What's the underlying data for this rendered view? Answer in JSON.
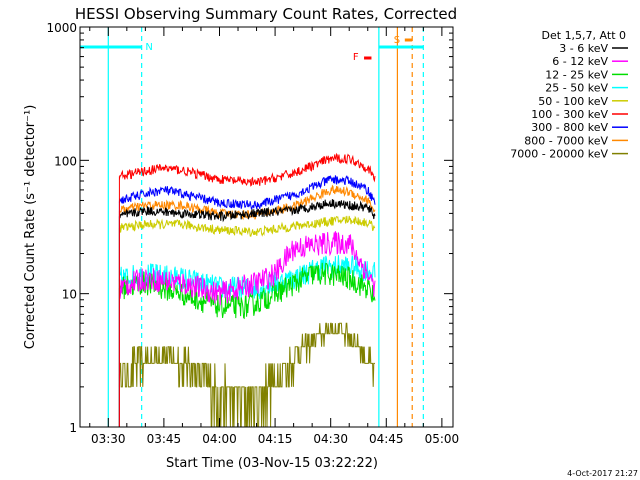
{
  "chart_data": {
    "type": "line",
    "title": "HESSI Observing Summary Count Rates, Corrected",
    "xlabel": "Start Time (03-Nov-15 03:22:22)",
    "ylabel": "Corrected Count Rate (s⁻¹ detector⁻¹)",
    "yscale": "log",
    "ylim": [
      1,
      1000
    ],
    "xlim": [
      "03:22:22",
      "05:03:00"
    ],
    "x_ticks": [
      "03:30",
      "03:45",
      "04:00",
      "04:15",
      "04:30",
      "04:45",
      "05:00"
    ],
    "y_ticks": [
      "1",
      "10",
      "100",
      "1000"
    ],
    "legend_title": "Det 1,5,7, Att 0",
    "legend_position": "right",
    "timestamp": "4-Oct-2017 21:27",
    "series": [
      {
        "name": "3 - 6 keV",
        "color": "#000000",
        "points": [
          [
            "03:33",
            38
          ],
          [
            "03:40",
            42
          ],
          [
            "03:50",
            40
          ],
          [
            "04:00",
            38
          ],
          [
            "04:10",
            40
          ],
          [
            "04:20",
            42
          ],
          [
            "04:30",
            48
          ],
          [
            "04:35",
            46
          ],
          [
            "04:40",
            44
          ],
          [
            "04:42",
            38
          ]
        ]
      },
      {
        "name": "6 - 12 keV",
        "color": "#ff00ff",
        "points": [
          [
            "03:33",
            11
          ],
          [
            "03:40",
            13
          ],
          [
            "03:50",
            12
          ],
          [
            "04:00",
            10
          ],
          [
            "04:10",
            12
          ],
          [
            "04:15",
            14
          ],
          [
            "04:20",
            22
          ],
          [
            "04:30",
            24
          ],
          [
            "04:35",
            24
          ],
          [
            "04:40",
            14
          ],
          [
            "04:42",
            11
          ]
        ]
      },
      {
        "name": "12 - 25 keV",
        "color": "#00dd00",
        "points": [
          [
            "03:33",
            11
          ],
          [
            "03:40",
            12
          ],
          [
            "03:50",
            10
          ],
          [
            "04:00",
            8
          ],
          [
            "04:08",
            8
          ],
          [
            "04:15",
            10
          ],
          [
            "04:25",
            14
          ],
          [
            "04:30",
            14
          ],
          [
            "04:35",
            13
          ],
          [
            "04:40",
            11
          ],
          [
            "04:42",
            9
          ]
        ]
      },
      {
        "name": "25 - 50 keV",
        "color": "#00ffff",
        "points": [
          [
            "03:33",
            13
          ],
          [
            "03:40",
            14
          ],
          [
            "03:50",
            13
          ],
          [
            "04:00",
            11
          ],
          [
            "04:10",
            11
          ],
          [
            "04:20",
            13
          ],
          [
            "04:28",
            16
          ],
          [
            "04:35",
            16
          ],
          [
            "04:40",
            15
          ],
          [
            "04:42",
            14
          ]
        ]
      },
      {
        "name": "50 - 100 keV",
        "color": "#cccc00",
        "points": [
          [
            "03:33",
            31
          ],
          [
            "03:40",
            33
          ],
          [
            "03:50",
            33
          ],
          [
            "04:00",
            30
          ],
          [
            "04:10",
            29
          ],
          [
            "04:20",
            32
          ],
          [
            "04:30",
            35
          ],
          [
            "04:35",
            36
          ],
          [
            "04:40",
            34
          ],
          [
            "04:42",
            31
          ]
        ]
      },
      {
        "name": "100 - 300 keV",
        "color": "#ff0000",
        "points": [
          [
            "03:33",
            76
          ],
          [
            "03:40",
            83
          ],
          [
            "03:45",
            88
          ],
          [
            "03:50",
            84
          ],
          [
            "04:00",
            72
          ],
          [
            "04:10",
            68
          ],
          [
            "04:20",
            80
          ],
          [
            "04:30",
            103
          ],
          [
            "04:35",
            103
          ],
          [
            "04:40",
            88
          ],
          [
            "04:42",
            72
          ]
        ]
      },
      {
        "name": "300 - 800 keV",
        "color": "#0000ff",
        "points": [
          [
            "03:33",
            50
          ],
          [
            "03:40",
            56
          ],
          [
            "03:45",
            60
          ],
          [
            "03:50",
            56
          ],
          [
            "04:00",
            48
          ],
          [
            "04:10",
            46
          ],
          [
            "04:20",
            55
          ],
          [
            "04:30",
            72
          ],
          [
            "04:35",
            70
          ],
          [
            "04:40",
            60
          ],
          [
            "04:42",
            48
          ]
        ]
      },
      {
        "name": "800 - 7000 keV",
        "color": "#ff8800",
        "points": [
          [
            "03:33",
            42
          ],
          [
            "03:40",
            46
          ],
          [
            "03:50",
            46
          ],
          [
            "04:00",
            40
          ],
          [
            "04:10",
            39
          ],
          [
            "04:20",
            45
          ],
          [
            "04:30",
            60
          ],
          [
            "04:35",
            58
          ],
          [
            "04:40",
            50
          ],
          [
            "04:42",
            41
          ]
        ]
      },
      {
        "name": "7000 - 20000 keV",
        "color": "#808000",
        "points": [
          [
            "03:33",
            2.5
          ],
          [
            "03:40",
            3.2
          ],
          [
            "03:45",
            3.5
          ],
          [
            "03:52",
            3
          ],
          [
            "04:00",
            1.8
          ],
          [
            "04:08",
            1.6
          ],
          [
            "04:15",
            2.2
          ],
          [
            "04:22",
            3.8
          ],
          [
            "04:30",
            5.5
          ],
          [
            "04:35",
            5
          ],
          [
            "04:40",
            3.3
          ],
          [
            "04:42",
            2.6
          ]
        ]
      }
    ],
    "annotations": [
      {
        "label": "N",
        "color": "#00ffff"
      },
      {
        "label": "F",
        "color": "#ff0000"
      },
      {
        "label": "S",
        "color": "#ff8800"
      }
    ]
  }
}
